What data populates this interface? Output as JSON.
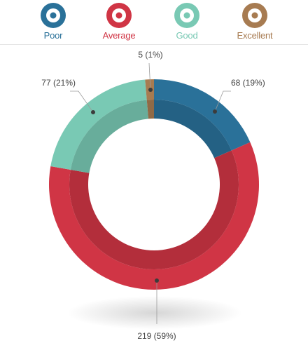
{
  "legend": [
    {
      "label": "Poor",
      "color": "#2a7199"
    },
    {
      "label": "Average",
      "color": "#d03545"
    },
    {
      "label": "Good",
      "color": "#79c9b4"
    },
    {
      "label": "Excellent",
      "color": "#a77b51"
    }
  ],
  "chart_data": {
    "type": "pie",
    "variant": "donut",
    "categories": [
      "Poor",
      "Average",
      "Good",
      "Excellent"
    ],
    "values": [
      68,
      219,
      77,
      5
    ],
    "percents": [
      19,
      59,
      21,
      1
    ],
    "data_labels": [
      "68 (19%)",
      "219 (59%)",
      "77 (21%)",
      "5 (1%)"
    ],
    "colors": [
      "#2a7199",
      "#d03545",
      "#79c9b4",
      "#a77b51"
    ],
    "legend_position": "top"
  }
}
